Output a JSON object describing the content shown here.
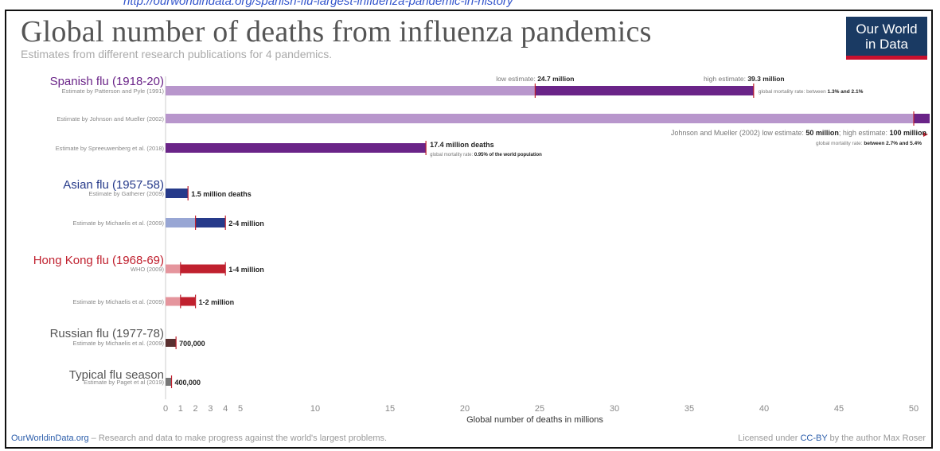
{
  "header_strip": "http://ourworldindata.org/spanish-flu-largest-influenza-pandemic-in-history",
  "title": "Global number of deaths from influenza pandemics",
  "subtitle": "Estimates from different research publications for 4 pandemics.",
  "logo": {
    "line1": "Our World",
    "line2": "in Data"
  },
  "footer": {
    "site": "OurWorldinData.org",
    "tagline": " – Research and data to make progress against the world's largest problems.",
    "license_prefix": "Licensed under ",
    "license": "CC-BY",
    "license_suffix": " by the author Max Roser"
  },
  "colors": {
    "spanish_dark": "#6a2488",
    "spanish_light": "#b896cc",
    "asian_dark": "#263a8a",
    "asian_light": "#98a6d4",
    "hongkong_dark": "#c0202e",
    "hongkong_light": "#e5959d",
    "russian_dark": "#5a3030",
    "typical_dark": "#777777",
    "spanish_label": "#6a2488",
    "asian_label": "#263a8a",
    "hongkong_label": "#c0202e",
    "russian_label": "#555555",
    "typical_label": "#555555"
  },
  "chart_data": {
    "type": "bar",
    "orientation": "horizontal",
    "xlabel": "Global number of deaths in millions",
    "xlim": [
      0,
      51
    ],
    "xticks": [
      0,
      1,
      2,
      3,
      4,
      5,
      10,
      15,
      20,
      25,
      30,
      35,
      40,
      45,
      50
    ],
    "groups": [
      {
        "name": "Spanish flu (1918-20)",
        "color_key": "spanish",
        "rows": [
          {
            "source": "Estimate by Patterson and Pyle (1991)",
            "low": 24.7,
            "high": 39.3,
            "annotations": {
              "low_prefix": "low estimate: ",
              "low_value": "24.7 million",
              "high_prefix": "high estimate: ",
              "high_value": "39.3 million",
              "rate_prefix": "global mortality rate: between ",
              "rate_value": "1.3% and 2.1%"
            }
          },
          {
            "source": "Estimate by Johnson and Mueller (2002)",
            "low": 50,
            "high": 100,
            "annotations": {
              "range_prefix": "Johnson and Mueller (2002) low estimate: ",
              "low_value": "50 million",
              "range_mid": "; high estimate: ",
              "high_value": "100 million",
              "rate_prefix": "global mortality rate: ",
              "rate_value": "between 2.7% and 5.4%"
            }
          },
          {
            "source": "Estimate by Spreeuwenberg et al. (2018)",
            "low": null,
            "high": 17.4,
            "annotations": {
              "value_label": "17.4 million deaths",
              "rate_prefix": "global mortality rate: ",
              "rate_value": "0.95% of the world population"
            }
          }
        ]
      },
      {
        "name": "Asian flu (1957-58)",
        "color_key": "asian",
        "rows": [
          {
            "source": "Estimate by Gatherer (2009)",
            "low": null,
            "high": 1.5,
            "annotations": {
              "value_label": "1.5 million deaths"
            }
          },
          {
            "source": "Estimate by Michaelis et al. (2009)",
            "low": 2,
            "high": 4,
            "annotations": {
              "value_label": "2-4 million"
            }
          }
        ]
      },
      {
        "name": "Hong Kong flu (1968-69)",
        "color_key": "hongkong",
        "rows": [
          {
            "source": "WHO (2009)",
            "low": 1,
            "high": 4,
            "annotations": {
              "value_label": "1-4 million"
            }
          },
          {
            "source": "Estimate by Michaelis et al. (2009)",
            "low": 1,
            "high": 2,
            "annotations": {
              "value_label": "1-2 million"
            }
          }
        ]
      },
      {
        "name": "Russian flu (1977-78)",
        "color_key": "russian",
        "rows": [
          {
            "source": "Estimate by Michaelis et al. (2009)",
            "low": null,
            "high": 0.7,
            "annotations": {
              "value_label": "700,000"
            }
          }
        ]
      },
      {
        "name": "Typical flu season",
        "color_key": "typical",
        "rows": [
          {
            "source": "Estimate by Paget et al (2019)",
            "low": null,
            "high": 0.4,
            "annotations": {
              "value_label": "400,000"
            }
          }
        ]
      }
    ]
  }
}
